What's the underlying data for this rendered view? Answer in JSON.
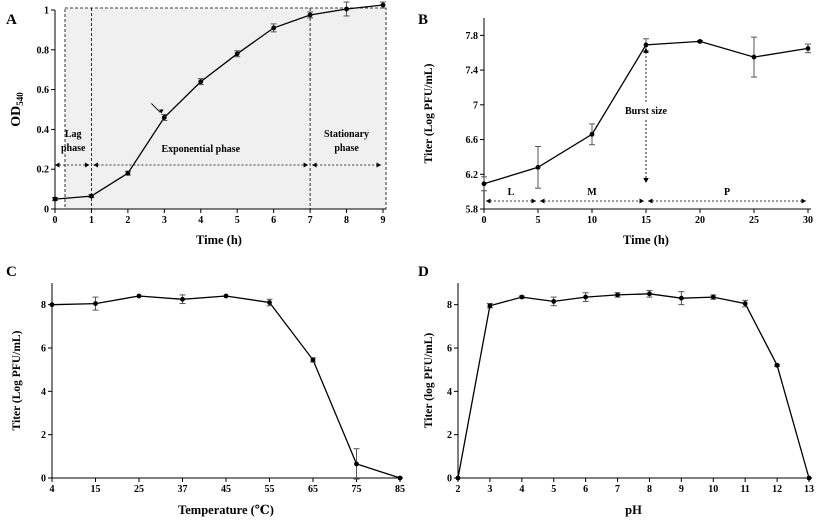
{
  "chart_data": [
    {
      "panel": "A",
      "type": "line",
      "xlabel": "Time (h)",
      "ylabel": "OD540",
      "ylabel_main": "OD",
      "ylabel_sub": "540",
      "x": [
        0,
        1,
        2,
        3,
        4,
        5,
        6,
        7,
        8,
        9
      ],
      "y": [
        0.05,
        0.065,
        0.18,
        0.46,
        0.64,
        0.78,
        0.91,
        0.975,
        1.005,
        1.025
      ],
      "err": [
        0.008,
        0.008,
        0.01,
        0.015,
        0.015,
        0.015,
        0.02,
        0.015,
        0.035,
        0.015
      ],
      "xlim": [
        0,
        9
      ],
      "ylim": [
        0,
        1
      ],
      "xticks": [
        "0",
        "1",
        "2",
        "3",
        "4",
        "5",
        "6",
        "7",
        "8",
        "9"
      ],
      "yticks": [
        "0",
        "0.2",
        "0.4",
        "0.6",
        "0.8",
        "1"
      ],
      "phases": [
        {
          "label_lines": [
            "Lag",
            "phase"
          ],
          "start": 0,
          "end": 1
        },
        {
          "label_lines": [
            "Exponential phase"
          ],
          "start": 1,
          "end": 7
        },
        {
          "label_lines": [
            "Stationary",
            "phase"
          ],
          "start": 7,
          "end": 9
        }
      ],
      "arrow_at_x": 3
    },
    {
      "panel": "B",
      "type": "line",
      "xlabel": "Time (h)",
      "ylabel": "Titer (Log PFU/mL)",
      "x": [
        0,
        5,
        10,
        15,
        20,
        25,
        30
      ],
      "y": [
        6.09,
        6.28,
        6.66,
        7.69,
        7.73,
        7.55,
        7.65
      ],
      "err": [
        0.08,
        0.24,
        0.12,
        0.07,
        0.01,
        0.23,
        0.05
      ],
      "xlim": [
        0,
        30
      ],
      "ylim": [
        5.8,
        8.0
      ],
      "xticks": [
        "0",
        "5",
        "10",
        "15",
        "20",
        "25",
        "30"
      ],
      "yticks": [
        "5.8",
        "6.2",
        "6.6",
        "7",
        "7.4",
        "7.8"
      ],
      "phases": [
        {
          "label": "L",
          "start": 0,
          "end": 5
        },
        {
          "label": "M",
          "start": 5,
          "end": 15
        },
        {
          "label": "P",
          "start": 15,
          "end": 30
        }
      ],
      "annotation": "Burst size"
    },
    {
      "panel": "C",
      "type": "line",
      "xlabel": "Temperature (℃)",
      "ylabel": "Titer (Log PFU/mL)",
      "categories": [
        "4",
        "15",
        "25",
        "37",
        "45",
        "55",
        "65",
        "75",
        "85"
      ],
      "y": [
        8.0,
        8.05,
        8.4,
        8.25,
        8.4,
        8.1,
        5.45,
        0.65,
        0.0
      ],
      "err": [
        0.0,
        0.3,
        0.0,
        0.2,
        0.0,
        0.15,
        0.1,
        0.7,
        0.0
      ],
      "ylim": [
        0,
        9
      ],
      "yticks": [
        "0",
        "2",
        "4",
        "6",
        "8"
      ]
    },
    {
      "panel": "D",
      "type": "line",
      "xlabel": "pH",
      "ylabel": "Titer (log PFU/mL)",
      "categories": [
        "2",
        "3",
        "4",
        "5",
        "6",
        "7",
        "8",
        "9",
        "10",
        "11",
        "12",
        "13"
      ],
      "y": [
        0.0,
        7.95,
        8.35,
        8.15,
        8.35,
        8.45,
        8.5,
        8.3,
        8.35,
        8.05,
        5.2,
        0.0
      ],
      "err": [
        0.0,
        0.1,
        0.05,
        0.2,
        0.2,
        0.1,
        0.15,
        0.3,
        0.1,
        0.15,
        0.05,
        0.0
      ],
      "ylim": [
        0,
        9
      ],
      "yticks": [
        "0",
        "2",
        "4",
        "6",
        "8"
      ]
    }
  ]
}
